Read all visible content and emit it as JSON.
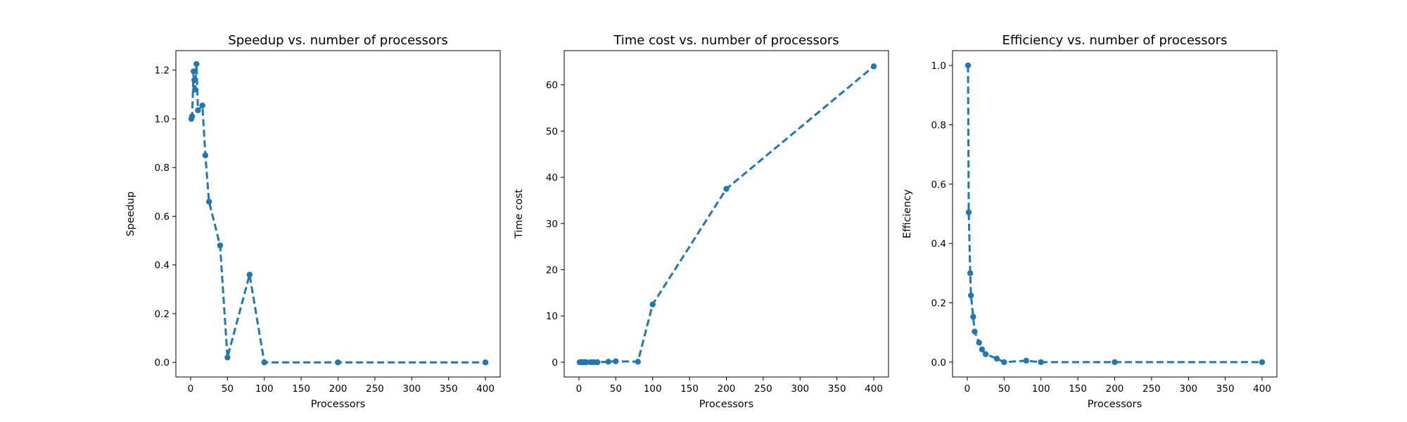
{
  "colors": {
    "series": "#1f77b4"
  },
  "chart_data": [
    {
      "type": "line",
      "title": "Speedup vs. number of processors",
      "xlabel": "Processors",
      "ylabel": "Speedup",
      "xlim": [
        -20,
        420
      ],
      "ylim": [
        -0.06,
        1.28
      ],
      "xticks": [
        0,
        50,
        100,
        150,
        200,
        250,
        300,
        350,
        400
      ],
      "xtick_labels": [
        "0",
        "50",
        "100",
        "150",
        "200",
        "250",
        "300",
        "350",
        "400"
      ],
      "yticks": [
        0,
        0.2,
        0.4,
        0.6,
        0.8,
        1.0,
        1.2
      ],
      "ytick_labels": [
        "0.0",
        "0.2",
        "0.4",
        "0.6",
        "0.8",
        "1.0",
        "1.2"
      ],
      "grid": false,
      "marker": "circle",
      "line_style": "dashed",
      "x": [
        1,
        2,
        4,
        5,
        6,
        8,
        10,
        16,
        20,
        25,
        40,
        50,
        80,
        100,
        200,
        400
      ],
      "y": [
        1.0,
        1.01,
        1.195,
        1.16,
        1.12,
        1.225,
        1.035,
        1.055,
        0.85,
        0.66,
        0.48,
        0.02,
        0.36,
        0.0,
        0.0,
        0.0
      ]
    },
    {
      "type": "line",
      "title": "Time cost vs. number of processors",
      "xlabel": "Processors",
      "ylabel": "Time cost",
      "xlim": [
        -20,
        420
      ],
      "ylim": [
        -3.2,
        67.4
      ],
      "xticks": [
        0,
        50,
        100,
        150,
        200,
        250,
        300,
        350,
        400
      ],
      "xtick_labels": [
        "0",
        "50",
        "100",
        "150",
        "200",
        "250",
        "300",
        "350",
        "400"
      ],
      "yticks": [
        0,
        10,
        20,
        30,
        40,
        50,
        60
      ],
      "ytick_labels": [
        "0",
        "10",
        "20",
        "30",
        "40",
        "50",
        "60"
      ],
      "grid": false,
      "marker": "circle",
      "line_style": "dashed",
      "x": [
        1,
        2,
        4,
        5,
        6,
        8,
        10,
        16,
        20,
        25,
        40,
        50,
        80,
        100,
        200,
        400
      ],
      "y": [
        0.0,
        0.0,
        0.0,
        0.0,
        0.0,
        0.0,
        0.0,
        0.0,
        0.0,
        0.0,
        0.1,
        0.2,
        0.1,
        12.5,
        37.5,
        64.0
      ]
    },
    {
      "type": "line",
      "title": "Efficiency vs. number of processors",
      "xlabel": "Processors",
      "ylabel": "Efficiency",
      "xlim": [
        -20,
        420
      ],
      "ylim": [
        -0.05,
        1.05
      ],
      "xticks": [
        0,
        50,
        100,
        150,
        200,
        250,
        300,
        350,
        400
      ],
      "xtick_labels": [
        "0",
        "50",
        "100",
        "150",
        "200",
        "250",
        "300",
        "350",
        "400"
      ],
      "yticks": [
        0,
        0.2,
        0.4,
        0.6,
        0.8,
        1.0
      ],
      "ytick_labels": [
        "0.0",
        "0.2",
        "0.4",
        "0.6",
        "0.8",
        "1.0"
      ],
      "grid": false,
      "marker": "circle",
      "line_style": "dashed",
      "x": [
        1,
        2,
        4,
        5,
        8,
        10,
        16,
        20,
        25,
        40,
        50,
        80,
        100,
        200,
        400
      ],
      "y": [
        1.0,
        0.505,
        0.3,
        0.225,
        0.153,
        0.103,
        0.066,
        0.043,
        0.027,
        0.012,
        0.0,
        0.005,
        0.0,
        0.0,
        0.0
      ]
    }
  ]
}
